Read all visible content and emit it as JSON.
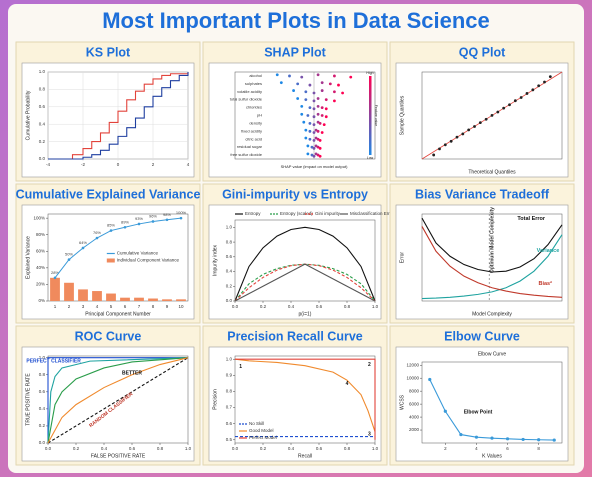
{
  "title": "Most Important Plots in Data Science",
  "chart_data": [
    {
      "type": "line",
      "title": "KS Plot",
      "ylabel": "Cumulative Probability",
      "step": true,
      "grid": true,
      "xlim": [
        -4,
        4
      ],
      "ylim": [
        0,
        1
      ],
      "xticks": [
        -4,
        -2,
        0,
        2,
        4
      ],
      "yticks": [
        {
          "value": 0,
          "label": "0.0"
        },
        0.2,
        0.4,
        0.6,
        0.8,
        {
          "value": 1,
          "label": "1.0"
        }
      ],
      "series": [
        {
          "color": "#e2433b",
          "x": [
            -4,
            -2.6,
            -2,
            -1.5,
            -1,
            -0.5,
            0,
            0.5,
            1,
            1.5,
            2,
            2.5,
            3,
            4
          ],
          "values": [
            0,
            0.05,
            0.12,
            0.2,
            0.3,
            0.42,
            0.55,
            0.68,
            0.78,
            0.86,
            0.92,
            0.96,
            0.98,
            1
          ]
        },
        {
          "color": "#1f3fa0",
          "x": [
            -4,
            -2,
            -1.5,
            -1,
            -0.5,
            0,
            0.5,
            1,
            1.5,
            2,
            2.5,
            3,
            3.5,
            4
          ],
          "values": [
            0,
            0.02,
            0.05,
            0.1,
            0.17,
            0.26,
            0.36,
            0.47,
            0.6,
            0.72,
            0.82,
            0.9,
            0.96,
            1
          ]
        }
      ]
    },
    {
      "type": "beeswarm",
      "title": "SHAP Plot",
      "xlabel": "SHAP value (impact on model output)",
      "colorbar_label": "Feature value",
      "colorbar_high": "High",
      "colorbar_low": "Low",
      "cmap": [
        "#1e88e5",
        "#ff0052"
      ],
      "xlim": [
        -1.2,
        1.2
      ],
      "features": [
        "alcohol",
        "sulphates",
        "volatile acidity",
        "total sulfur dioxide",
        "chlorides",
        "pH",
        "density",
        "fixed acidity",
        "citric acid",
        "residual sugar",
        "free sulfur dioxide"
      ],
      "values": [
        [
          -0.9,
          -0.6,
          -0.3,
          0.1,
          0.5,
          0.9
        ],
        [
          -0.8,
          -0.4,
          -0.1,
          0.2,
          0.4,
          0.6
        ],
        [
          -0.5,
          -0.2,
          0,
          0.2,
          0.5,
          0.7
        ],
        [
          -0.4,
          -0.2,
          0,
          0.1,
          0.3,
          0.5
        ],
        [
          -0.3,
          -0.1,
          0,
          0.1,
          0.2,
          0.3
        ],
        [
          -0.3,
          -0.15,
          0,
          0.1,
          0.2,
          0.3
        ],
        [
          -0.25,
          -0.1,
          0,
          0.1,
          0.15,
          0.25
        ],
        [
          -0.2,
          -0.1,
          0,
          0.05,
          0.1,
          0.2
        ],
        [
          -0.2,
          -0.1,
          0,
          0.05,
          0.1,
          0.15
        ],
        [
          -0.15,
          -0.05,
          0,
          0.05,
          0.1,
          0.15
        ],
        [
          -0.15,
          -0.05,
          0,
          0.05,
          0.1,
          0.15
        ]
      ]
    },
    {
      "type": "scatter",
      "title": "QQ Plot",
      "xlabel": "Theoretical Quantiles",
      "ylabel": "Sample Quantiles",
      "reference_line": true,
      "color": "#222",
      "xlim": [
        -3,
        3
      ],
      "ylim": [
        -3,
        3
      ],
      "x": [
        -2.5,
        -2.25,
        -2,
        -1.75,
        -1.5,
        -1.25,
        -1,
        -0.75,
        -0.5,
        -0.25,
        0,
        0.25,
        0.5,
        0.75,
        1,
        1.25,
        1.5,
        1.75,
        2,
        2.25,
        2.5
      ],
      "values": [
        -2.72,
        -2.3,
        -2.02,
        -1.78,
        -1.49,
        -1.27,
        -0.99,
        -0.76,
        -0.49,
        -0.26,
        0.01,
        0.24,
        0.51,
        0.74,
        1.02,
        1.24,
        1.52,
        1.77,
        2.05,
        2.31,
        2.68
      ]
    },
    {
      "type": "bar",
      "title": "Cumulative Explained Variance",
      "xlabel": "Principal Component Number",
      "ylabel": "Explained Variance",
      "legend": "center right",
      "categories": [
        "1",
        "2",
        "3",
        "4",
        "5",
        "6",
        "7",
        "8",
        "9",
        "10"
      ],
      "ylim": [
        0,
        105
      ],
      "yticks": [
        {
          "value": 0,
          "label": "0%"
        },
        {
          "value": 20,
          "label": "20%"
        },
        {
          "value": 40,
          "label": "40%"
        },
        {
          "value": 60,
          "label": "60%"
        },
        {
          "value": 80,
          "label": "80%"
        },
        {
          "value": 100,
          "label": "100%"
        }
      ],
      "series": [
        {
          "name": "Cumulative Variance",
          "mark": "line",
          "color": "#3a9ad9",
          "values": [
            28,
            50,
            64,
            76,
            85,
            89,
            93,
            96,
            98,
            100
          ],
          "value_labels": [
            "28%",
            "50%",
            "64%",
            "76%",
            "85%",
            "89%",
            "93%",
            "96%",
            "98%",
            "100%"
          ]
        },
        {
          "name": "Individual Component Variance",
          "mark": "bar",
          "color": "#f08a5d",
          "values": [
            28,
            22,
            14,
            12,
            9,
            4,
            4,
            3,
            2,
            2
          ]
        }
      ]
    },
    {
      "type": "line",
      "title": "Gini-impurity vs Entropy",
      "xlabel": "p(i=1)",
      "ylabel": "Impurity index",
      "legend": "top",
      "xlim": [
        0,
        1
      ],
      "ylim": [
        0,
        1.1
      ],
      "xticks": [
        {
          "value": 0,
          "label": "0.0"
        },
        0.2,
        0.4,
        0.6,
        0.8,
        {
          "value": 1,
          "label": "1.0"
        }
      ],
      "yticks": [
        {
          "value": 0,
          "label": "0.0"
        },
        0.2,
        0.4,
        0.6,
        0.8,
        {
          "value": 1,
          "label": "1.0"
        }
      ],
      "x": [
        0,
        0.1,
        0.2,
        0.3,
        0.4,
        0.5,
        0.6,
        0.7,
        0.8,
        0.9,
        1
      ],
      "series": [
        {
          "name": "Entropy",
          "color": "#111",
          "values": [
            0,
            0.469,
            0.722,
            0.881,
            0.971,
            1,
            0.971,
            0.881,
            0.722,
            0.469,
            0
          ]
        },
        {
          "name": "Entropy (scaled)",
          "color": "#2a9d4a",
          "dash": true,
          "values": [
            0,
            0.234,
            0.361,
            0.44,
            0.485,
            0.5,
            0.485,
            0.44,
            0.361,
            0.234,
            0
          ]
        },
        {
          "name": "Gini impurity",
          "color": "#e2433b",
          "dash": true,
          "values": [
            0,
            0.18,
            0.32,
            0.42,
            0.48,
            0.5,
            0.48,
            0.42,
            0.32,
            0.18,
            0
          ]
        },
        {
          "name": "Misclassification Error",
          "color": "#555",
          "values": [
            0,
            0.1,
            0.2,
            0.3,
            0.4,
            0.5,
            0.4,
            0.3,
            0.2,
            0.1,
            0
          ]
        }
      ]
    },
    {
      "type": "line",
      "title": "Bias Variance Tradeoff",
      "xlabel": "Model Complexity",
      "ylabel": "Error",
      "legend": "inline",
      "xlim": [
        0,
        10
      ],
      "ylim": [
        0,
        10.5
      ],
      "vline": 4.8,
      "annotations": [
        "Optimum Model Complexity"
      ],
      "x": [
        0,
        1,
        2,
        3,
        4,
        5,
        6,
        7,
        8,
        9,
        10
      ],
      "series": [
        {
          "name": "Total Error",
          "color": "#111",
          "values": [
            10,
            7,
            5.4,
            4.4,
            3.8,
            3.5,
            3.6,
            4.1,
            5.1,
            6.8,
            9.2
          ]
        },
        {
          "name": "Variance",
          "color": "#1fa3a0",
          "values": [
            0.3,
            0.35,
            0.45,
            0.6,
            0.8,
            1.1,
            1.6,
            2.4,
            3.6,
            5.4,
            8
          ]
        },
        {
          "name": "Bias²",
          "color": "#c0392b",
          "values": [
            9,
            6,
            4.2,
            3,
            2.2,
            1.6,
            1.2,
            0.9,
            0.7,
            0.55,
            0.45
          ]
        }
      ]
    },
    {
      "type": "line",
      "title": "ROC Curve",
      "xlabel": "FALSE POSITIVE RATE",
      "ylabel": "TRUE POSITIVE RATE",
      "annotations": [
        "PERFECT CLASSIFIER",
        "BETTER",
        "RANDOM CLASSIFIER"
      ],
      "xlim": [
        0,
        1
      ],
      "ylim": [
        0,
        1.02
      ],
      "xticks": [
        {
          "value": 0,
          "label": "0.0"
        },
        0.2,
        0.4,
        0.6,
        0.8,
        {
          "value": 1,
          "label": "1.0"
        }
      ],
      "yticks": [
        {
          "value": 0,
          "label": "0.0"
        },
        0.2,
        0.4,
        0.6,
        0.8,
        {
          "value": 1,
          "label": "1.0"
        }
      ],
      "series": [
        {
          "color": "#1f4fd0",
          "x": [
            0,
            0,
            1
          ],
          "values": [
            0,
            1,
            1
          ]
        },
        {
          "color": "#111",
          "dash": true,
          "x": [
            0,
            1
          ],
          "values": [
            0,
            1
          ]
        },
        {
          "color": "#1fa3a0",
          "x": [
            0,
            0.02,
            0.05,
            0.1,
            0.3,
            1
          ],
          "values": [
            0,
            0.6,
            0.78,
            0.88,
            0.96,
            1
          ]
        },
        {
          "color": "#2a9d4a",
          "x": [
            0,
            0.05,
            0.1,
            0.2,
            0.4,
            0.6,
            1
          ],
          "values": [
            0,
            0.45,
            0.6,
            0.75,
            0.88,
            0.95,
            1
          ]
        },
        {
          "color": "#f08a2d",
          "x": [
            0,
            0.1,
            0.2,
            0.4,
            0.6,
            0.8,
            1
          ],
          "values": [
            0,
            0.3,
            0.45,
            0.65,
            0.8,
            0.92,
            1
          ]
        }
      ]
    },
    {
      "type": "line",
      "title": "Precision Recall Curve",
      "xlabel": "Recall",
      "ylabel": "Precision",
      "legend": "lower left",
      "annotations": [
        "1",
        "2",
        "3",
        "4"
      ],
      "xlim": [
        0,
        1
      ],
      "ylim": [
        0.48,
        1.02
      ],
      "xticks": [
        {
          "value": 0,
          "label": "0.0"
        },
        0.2,
        0.4,
        0.6,
        0.8,
        {
          "value": 1,
          "label": "1.0"
        }
      ],
      "yticks": [
        0.5,
        0.6,
        0.7,
        0.8,
        0.9,
        {
          "value": 1,
          "label": "1.0"
        }
      ],
      "series": [
        {
          "name": "No Skill",
          "color": "#1f4fd0",
          "dash": true,
          "x": [
            0,
            1
          ],
          "values": [
            0.52,
            0.52
          ]
        },
        {
          "name": "Good Model",
          "color": "#f08a2d",
          "x": [
            0,
            0.1,
            0.3,
            0.5,
            0.7,
            0.8,
            0.9,
            0.95,
            1
          ],
          "values": [
            1,
            0.99,
            0.98,
            0.96,
            0.92,
            0.87,
            0.78,
            0.68,
            0.55
          ]
        },
        {
          "name": "Perfect Model",
          "color": "#e2433b",
          "x": [
            0,
            1,
            1
          ],
          "values": [
            1,
            1,
            0.5
          ]
        }
      ]
    },
    {
      "type": "line",
      "title": "Elbow Curve",
      "inner_title": "Elbow Curve",
      "xlabel": "K Values",
      "ylabel": "WCSS",
      "markers": true,
      "annotations": [
        "Elbow Point"
      ],
      "xlim": [
        0.5,
        9.5
      ],
      "ylim": [
        0,
        12500
      ],
      "xticks": [
        2,
        4,
        6,
        8
      ],
      "yticks": [
        2000,
        4000,
        6000,
        8000,
        10000,
        12000
      ],
      "x": [
        1,
        2,
        3,
        4,
        5,
        6,
        7,
        8,
        9
      ],
      "series": [
        {
          "color": "#3a9ad9",
          "values": [
            9800,
            4900,
            1300,
            900,
            750,
            650,
            550,
            500,
            450
          ]
        }
      ]
    }
  ]
}
